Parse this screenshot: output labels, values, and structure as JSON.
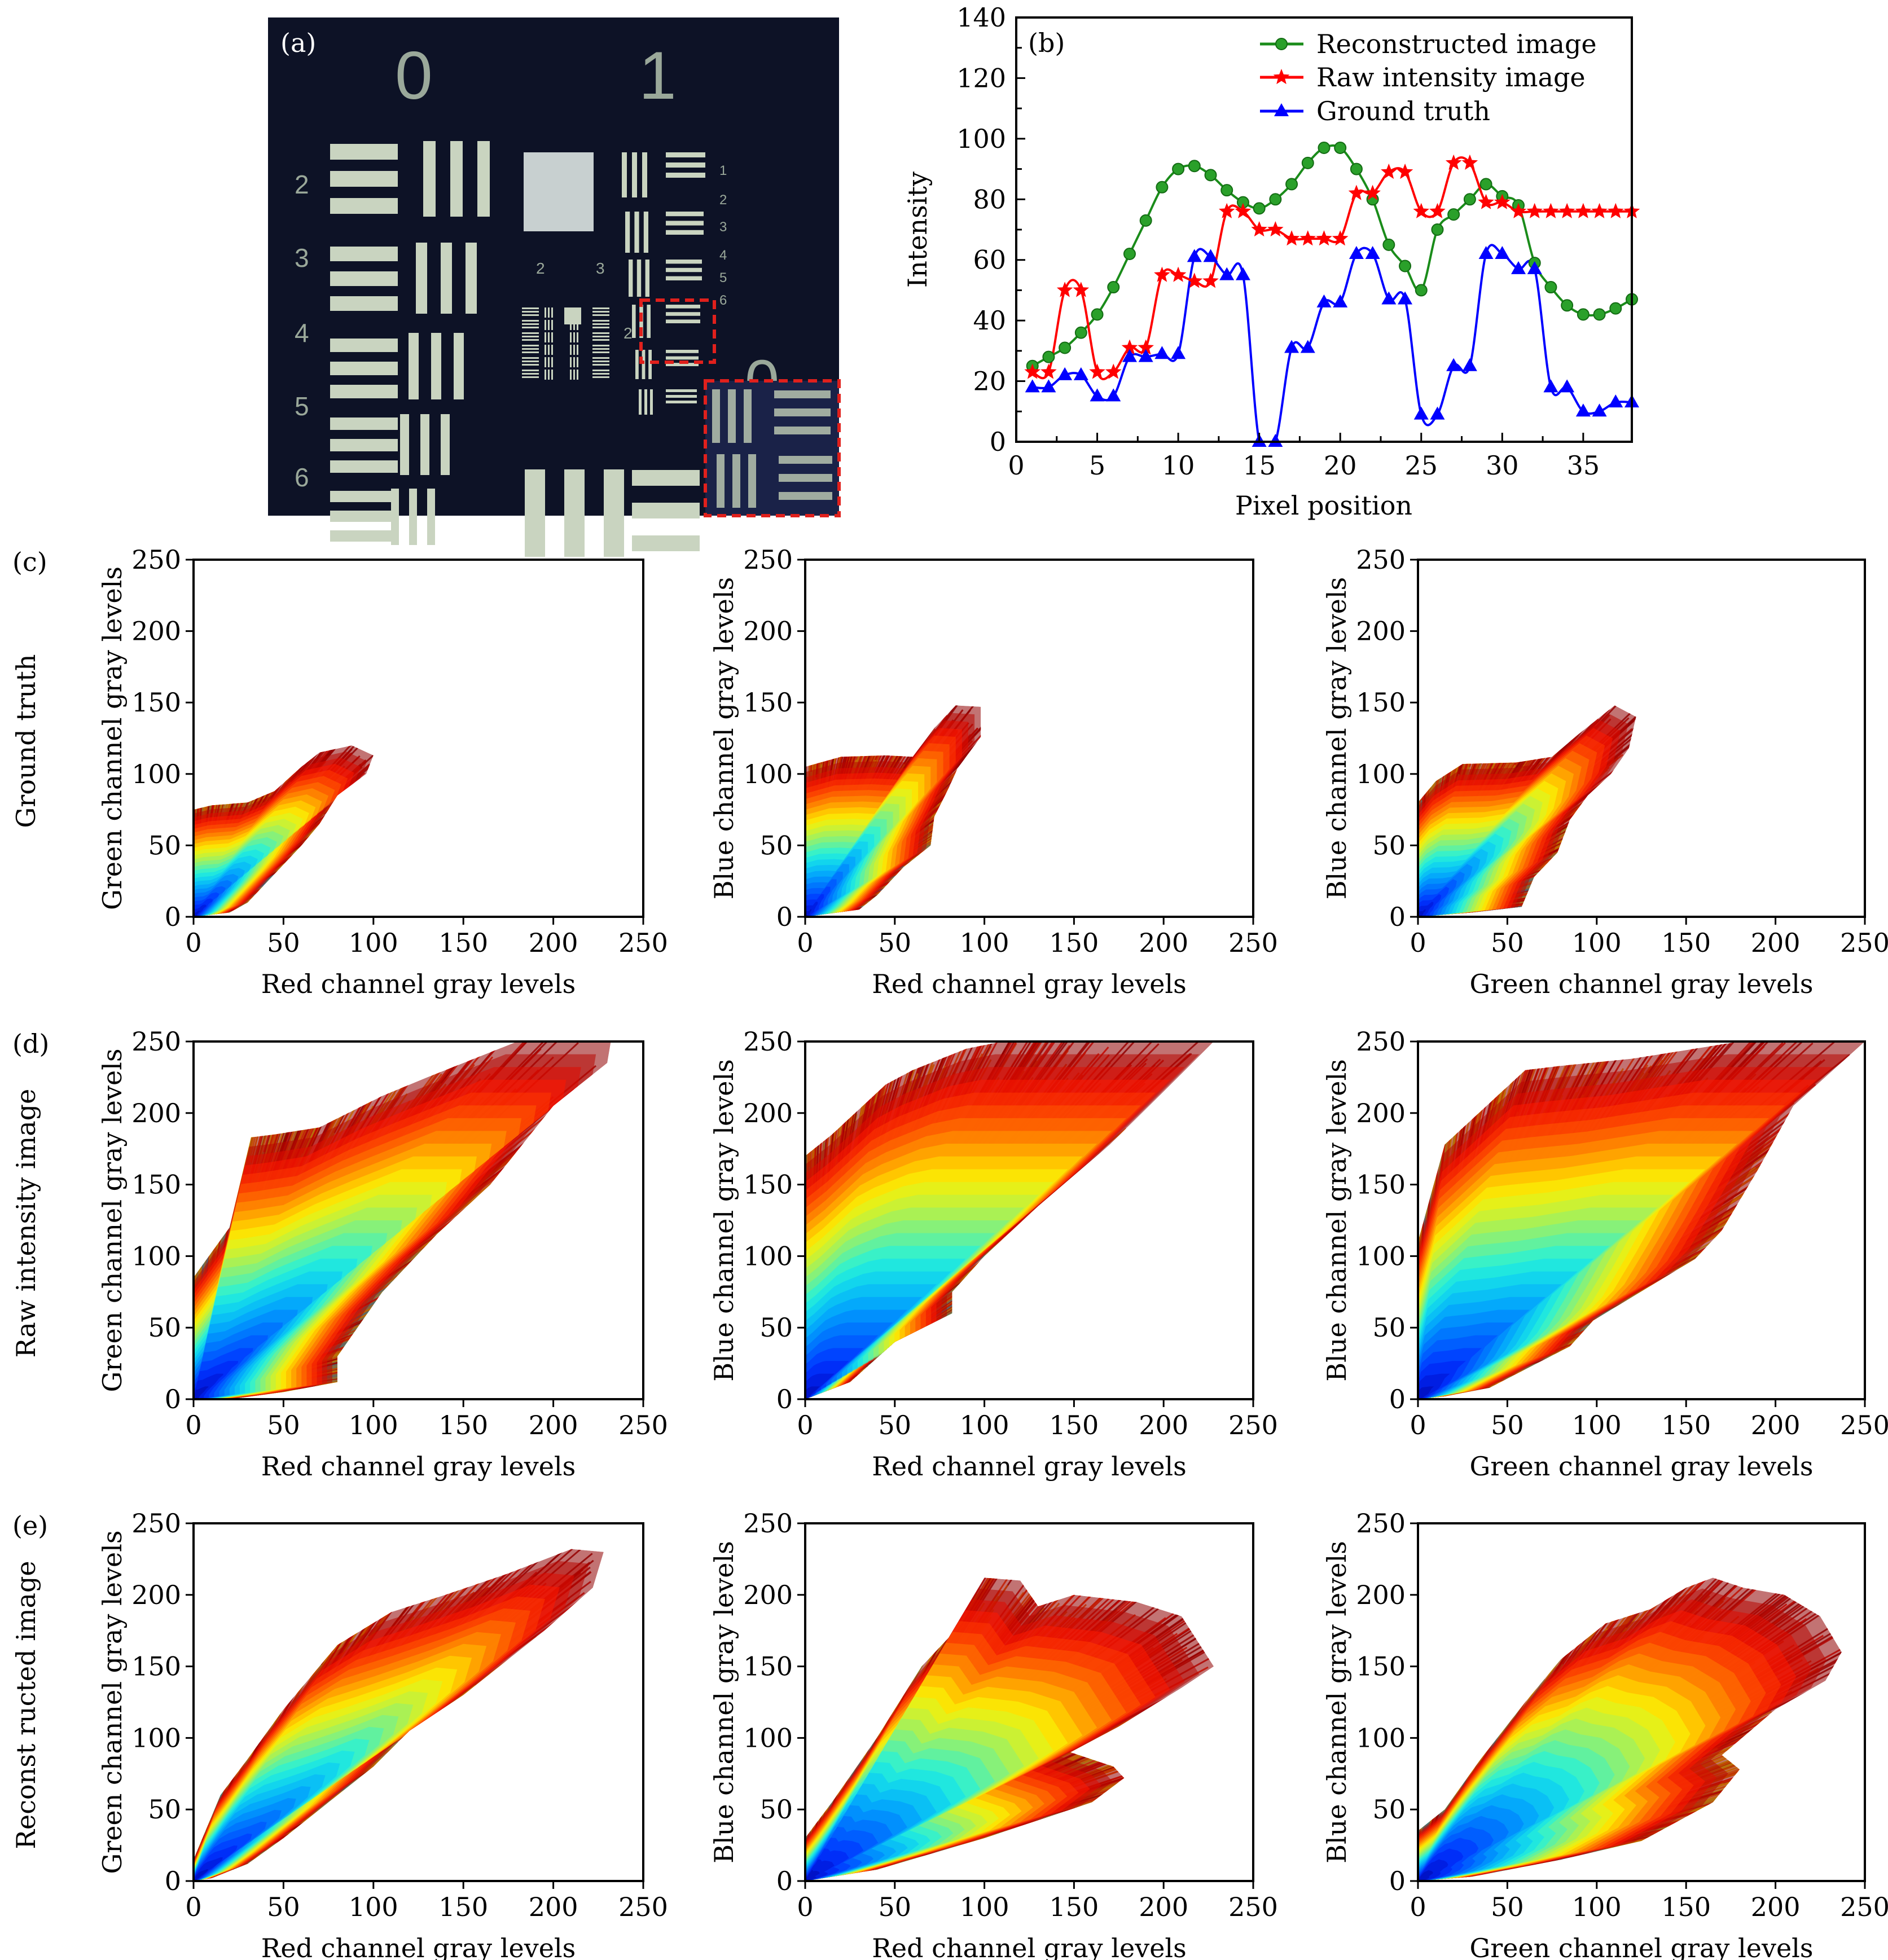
{
  "figure": {
    "panel_labels": [
      "(a)",
      "(b)",
      "(c)",
      "(d)",
      "(e)"
    ]
  },
  "panel_a": {
    "label": "(a)",
    "description": "USAF 1951 resolution target photograph",
    "group_numbers": [
      "0",
      "1"
    ],
    "left_element_numbers": [
      "2",
      "3",
      "4",
      "5",
      "6"
    ],
    "right_element_numbers": [
      "1",
      "2",
      "3",
      "4",
      "5",
      "6"
    ],
    "inner_group_numbers": [
      "2",
      "3"
    ],
    "inner_side_number": "2",
    "inset_group_number": "0",
    "colors": {
      "background": "#0d1226",
      "bars": "#c9d4c0",
      "highlight_box": "#e0201c"
    }
  },
  "chart_data": [
    {
      "id": "b",
      "type": "line",
      "panel_label": "(b)",
      "title": "",
      "xlabel": "Pixel position",
      "ylabel": "Intensity",
      "xlim": [
        0,
        38
      ],
      "ylim": [
        0,
        140
      ],
      "xticks": [
        0,
        5,
        10,
        15,
        20,
        25,
        30,
        35
      ],
      "yticks": [
        0,
        20,
        40,
        60,
        80,
        100,
        120,
        140
      ],
      "grid": false,
      "legend_position": "top-right",
      "x": [
        1,
        2,
        3,
        4,
        5,
        6,
        7,
        8,
        9,
        10,
        11,
        12,
        13,
        14,
        15,
        16,
        17,
        18,
        19,
        20,
        21,
        22,
        23,
        24,
        25,
        26,
        27,
        28,
        29,
        30,
        31,
        32,
        33,
        34,
        35,
        36,
        37,
        38
      ],
      "series": [
        {
          "name": "Reconstructed image",
          "color": "#1a8c1a",
          "marker": "circle",
          "values": [
            25,
            28,
            31,
            36,
            42,
            51,
            62,
            73,
            84,
            90,
            91,
            88,
            83,
            79,
            77,
            80,
            85,
            92,
            97,
            97,
            90,
            80,
            65,
            58,
            50,
            70,
            75,
            80,
            85,
            81,
            78,
            59,
            51,
            45,
            42,
            42,
            44,
            47
          ]
        },
        {
          "name": "Raw intensity image",
          "color": "#ff0000",
          "marker": "star",
          "values": [
            23,
            23,
            50,
            50,
            23,
            23,
            31,
            31,
            55,
            55,
            53,
            53,
            76,
            76,
            70,
            70,
            67,
            67,
            67,
            67,
            82,
            82,
            89,
            89,
            76,
            76,
            92,
            92,
            79,
            79,
            76,
            76,
            76,
            76,
            76,
            76,
            76,
            76
          ]
        },
        {
          "name": "Ground truth",
          "color": "#0000ff",
          "marker": "triangle",
          "values": [
            18,
            18,
            22,
            22,
            15,
            15,
            28,
            28,
            29,
            29,
            61,
            61,
            55,
            55,
            0,
            0,
            31,
            31,
            46,
            46,
            62,
            62,
            47,
            47,
            9,
            9,
            25,
            25,
            62,
            62,
            57,
            57,
            18,
            18,
            10,
            10,
            13,
            13
          ]
        }
      ]
    },
    {
      "id": "c1",
      "type": "scatter",
      "panel_label": "(c)",
      "row_label": "Ground truth",
      "xlabel": "Red channel gray levels",
      "ylabel": "Green channel gray levels",
      "xlim": [
        0,
        250
      ],
      "ylim": [
        0,
        250
      ],
      "xticks": [
        0,
        50,
        100,
        150,
        200,
        250
      ],
      "yticks": [
        0,
        50,
        100,
        150,
        200,
        250
      ],
      "colormap": "jet",
      "cloud": [
        [
          0,
          0
        ],
        [
          0,
          75
        ],
        [
          10,
          78
        ],
        [
          30,
          80
        ],
        [
          45,
          88
        ],
        [
          60,
          105
        ],
        [
          70,
          115
        ],
        [
          88,
          120
        ],
        [
          100,
          113
        ],
        [
          96,
          100
        ],
        [
          80,
          85
        ],
        [
          70,
          65
        ],
        [
          60,
          50
        ],
        [
          45,
          30
        ],
        [
          30,
          10
        ],
        [
          20,
          3
        ]
      ]
    },
    {
      "id": "c2",
      "type": "scatter",
      "panel_label": "",
      "row_label": "",
      "xlabel": "Red channel gray levels",
      "ylabel": "Blue channel gray levels",
      "xlim": [
        0,
        250
      ],
      "ylim": [
        0,
        250
      ],
      "xticks": [
        0,
        50,
        100,
        150,
        200,
        250
      ],
      "yticks": [
        0,
        50,
        100,
        150,
        200,
        250
      ],
      "colormap": "jet",
      "cloud": [
        [
          0,
          0
        ],
        [
          0,
          105
        ],
        [
          20,
          112
        ],
        [
          45,
          113
        ],
        [
          60,
          112
        ],
        [
          72,
          132
        ],
        [
          84,
          148
        ],
        [
          98,
          147
        ],
        [
          98,
          126
        ],
        [
          85,
          104
        ],
        [
          80,
          90
        ],
        [
          72,
          70
        ],
        [
          70,
          50
        ],
        [
          55,
          35
        ],
        [
          40,
          15
        ],
        [
          30,
          5
        ]
      ]
    },
    {
      "id": "c3",
      "type": "scatter",
      "panel_label": "",
      "row_label": "",
      "xlabel": "Green channel gray levels",
      "ylabel": "Blue channel gray levels",
      "xlim": [
        0,
        250
      ],
      "ylim": [
        0,
        250
      ],
      "xticks": [
        0,
        50,
        100,
        150,
        200,
        250
      ],
      "yticks": [
        0,
        50,
        100,
        150,
        200,
        250
      ],
      "colormap": "jet",
      "cloud": [
        [
          0,
          0
        ],
        [
          0,
          80
        ],
        [
          10,
          95
        ],
        [
          25,
          107
        ],
        [
          55,
          108
        ],
        [
          75,
          112
        ],
        [
          90,
          128
        ],
        [
          110,
          148
        ],
        [
          122,
          140
        ],
        [
          118,
          118
        ],
        [
          108,
          100
        ],
        [
          95,
          85
        ],
        [
          85,
          68
        ],
        [
          78,
          45
        ],
        [
          65,
          28
        ],
        [
          58,
          7
        ],
        [
          30,
          3
        ]
      ]
    },
    {
      "id": "d1",
      "type": "scatter",
      "panel_label": "(d)",
      "row_label": "Raw intensity image",
      "xlabel": "Red channel gray levels",
      "ylabel": "Green channel gray levels",
      "xlim": [
        0,
        250
      ],
      "ylim": [
        0,
        250
      ],
      "xticks": [
        0,
        50,
        100,
        150,
        200,
        250
      ],
      "yticks": [
        0,
        50,
        100,
        150,
        200,
        250
      ],
      "colormap": "jet",
      "cloud": [
        [
          0,
          0
        ],
        [
          0,
          85
        ],
        [
          20,
          120
        ],
        [
          32,
          183
        ],
        [
          45,
          185
        ],
        [
          70,
          190
        ],
        [
          105,
          212
        ],
        [
          130,
          225
        ],
        [
          160,
          240
        ],
        [
          180,
          250
        ],
        [
          232,
          250
        ],
        [
          230,
          235
        ],
        [
          200,
          205
        ],
        [
          165,
          150
        ],
        [
          135,
          115
        ],
        [
          105,
          75
        ],
        [
          80,
          30
        ],
        [
          80,
          12
        ],
        [
          50,
          5
        ],
        [
          20,
          0
        ]
      ]
    },
    {
      "id": "d2",
      "type": "scatter",
      "panel_label": "",
      "row_label": "",
      "xlabel": "Red channel gray levels",
      "ylabel": "Blue channel gray levels",
      "xlim": [
        0,
        250
      ],
      "ylim": [
        0,
        250
      ],
      "xticks": [
        0,
        50,
        100,
        150,
        200,
        250
      ],
      "yticks": [
        0,
        50,
        100,
        150,
        200,
        250
      ],
      "colormap": "jet",
      "cloud": [
        [
          0,
          0
        ],
        [
          0,
          170
        ],
        [
          15,
          185
        ],
        [
          45,
          220
        ],
        [
          60,
          230
        ],
        [
          90,
          245
        ],
        [
          110,
          250
        ],
        [
          228,
          250
        ],
        [
          200,
          215
        ],
        [
          170,
          178
        ],
        [
          130,
          135
        ],
        [
          100,
          100
        ],
        [
          82,
          75
        ],
        [
          82,
          60
        ],
        [
          50,
          40
        ],
        [
          25,
          12
        ]
      ]
    },
    {
      "id": "d3",
      "type": "scatter",
      "panel_label": "",
      "row_label": "",
      "xlabel": "Green channel gray levels",
      "ylabel": "Blue channel gray levels",
      "xlim": [
        0,
        250
      ],
      "ylim": [
        0,
        250
      ],
      "xticks": [
        0,
        50,
        100,
        150,
        200,
        250
      ],
      "yticks": [
        0,
        50,
        100,
        150,
        200,
        250
      ],
      "colormap": "jet",
      "cloud": [
        [
          0,
          0
        ],
        [
          0,
          110
        ],
        [
          15,
          178
        ],
        [
          60,
          230
        ],
        [
          80,
          233
        ],
        [
          120,
          238
        ],
        [
          180,
          250
        ],
        [
          250,
          250
        ],
        [
          210,
          205
        ],
        [
          190,
          160
        ],
        [
          170,
          118
        ],
        [
          155,
          98
        ],
        [
          98,
          55
        ],
        [
          85,
          37
        ],
        [
          40,
          8
        ],
        [
          15,
          2
        ]
      ]
    },
    {
      "id": "e1",
      "type": "scatter",
      "panel_label": "(e)",
      "row_label": "Reconst ructed image",
      "xlabel": "Red channel gray levels",
      "ylabel": "Green channel gray levels",
      "xlim": [
        0,
        250
      ],
      "ylim": [
        0,
        250
      ],
      "xticks": [
        0,
        50,
        100,
        150,
        200,
        250
      ],
      "yticks": [
        0,
        50,
        100,
        150,
        200,
        250
      ],
      "colormap": "jet",
      "cloud": [
        [
          0,
          0
        ],
        [
          0,
          15
        ],
        [
          15,
          60
        ],
        [
          30,
          85
        ],
        [
          50,
          120
        ],
        [
          80,
          165
        ],
        [
          110,
          188
        ],
        [
          140,
          200
        ],
        [
          175,
          215
        ],
        [
          210,
          232
        ],
        [
          228,
          230
        ],
        [
          222,
          205
        ],
        [
          195,
          175
        ],
        [
          150,
          130
        ],
        [
          120,
          105
        ],
        [
          100,
          80
        ],
        [
          80,
          60
        ],
        [
          50,
          30
        ],
        [
          30,
          12
        ],
        [
          10,
          2
        ]
      ]
    },
    {
      "id": "e2",
      "type": "scatter",
      "panel_label": "",
      "row_label": "",
      "xlabel": "Red channel gray levels",
      "ylabel": "Blue channel gray levels",
      "xlim": [
        0,
        250
      ],
      "ylim": [
        0,
        250
      ],
      "xticks": [
        0,
        50,
        100,
        150,
        200,
        250
      ],
      "yticks": [
        0,
        50,
        100,
        150,
        200,
        250
      ],
      "colormap": "jet",
      "cloud": [
        [
          0,
          0
        ],
        [
          0,
          30
        ],
        [
          15,
          55
        ],
        [
          40,
          100
        ],
        [
          65,
          150
        ],
        [
          80,
          170
        ],
        [
          100,
          212
        ],
        [
          120,
          210
        ],
        [
          130,
          192
        ],
        [
          150,
          200
        ],
        [
          185,
          195
        ],
        [
          210,
          185
        ],
        [
          228,
          150
        ],
        [
          210,
          135
        ],
        [
          175,
          108
        ],
        [
          148,
          90
        ],
        [
          172,
          80
        ],
        [
          178,
          72
        ],
        [
          160,
          55
        ],
        [
          100,
          30
        ],
        [
          40,
          8
        ]
      ]
    },
    {
      "id": "e3",
      "type": "scatter",
      "panel_label": "",
      "row_label": "",
      "xlabel": "Green channel gray levels",
      "ylabel": "Blue channel gray levels",
      "xlim": [
        0,
        250
      ],
      "ylim": [
        0,
        250
      ],
      "xticks": [
        0,
        50,
        100,
        150,
        200,
        250
      ],
      "yticks": [
        0,
        50,
        100,
        150,
        200,
        250
      ],
      "colormap": "jet",
      "cloud": [
        [
          0,
          0
        ],
        [
          0,
          35
        ],
        [
          15,
          50
        ],
        [
          35,
          85
        ],
        [
          60,
          125
        ],
        [
          80,
          155
        ],
        [
          105,
          180
        ],
        [
          130,
          190
        ],
        [
          150,
          205
        ],
        [
          165,
          212
        ],
        [
          182,
          205
        ],
        [
          205,
          200
        ],
        [
          225,
          185
        ],
        [
          237,
          160
        ],
        [
          228,
          140
        ],
        [
          200,
          120
        ],
        [
          170,
          88
        ],
        [
          180,
          78
        ],
        [
          165,
          55
        ],
        [
          125,
          28
        ],
        [
          80,
          15
        ],
        [
          30,
          3
        ]
      ]
    }
  ]
}
